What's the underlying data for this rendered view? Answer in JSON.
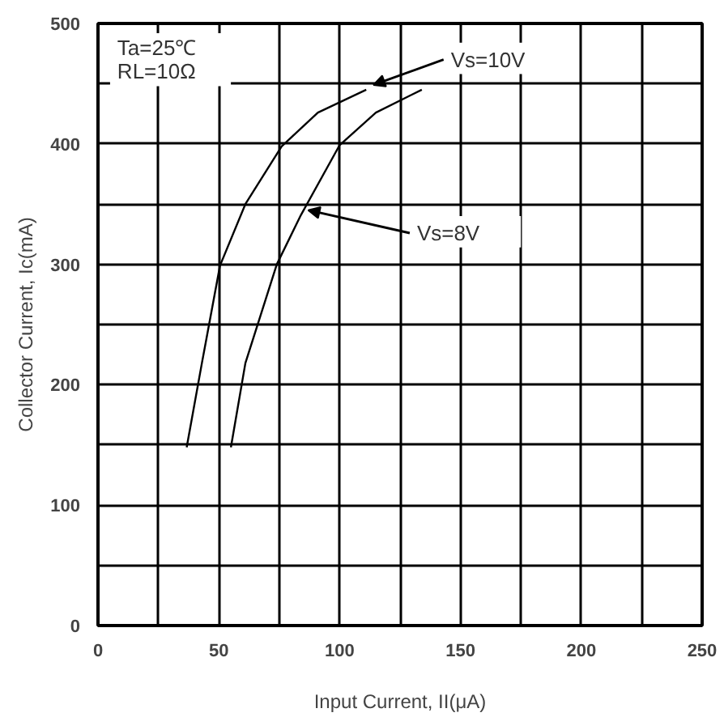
{
  "chart_data": {
    "type": "line",
    "xlabel": "Input Current, II(μA)",
    "ylabel": "Collector Current, Ic(mA)",
    "xlim": [
      0,
      250
    ],
    "ylim": [
      0,
      500
    ],
    "xticks": [
      0,
      {
        "value": 25,
        "label": null
      },
      50,
      {
        "value": 75,
        "label": null
      },
      100,
      {
        "value": 125,
        "label": null
      },
      150,
      {
        "value": 175,
        "label": null
      },
      200,
      {
        "value": 225,
        "label": null
      },
      250
    ],
    "yticks": [
      0,
      {
        "value": 50,
        "label": null
      },
      100,
      {
        "value": 150,
        "label": null
      },
      200,
      {
        "value": 250,
        "label": null
      },
      300,
      {
        "value": 350,
        "label": null
      },
      400,
      {
        "value": 450,
        "label": null
      },
      500
    ],
    "grid": true,
    "marker": "none",
    "line_style": "solid",
    "series": [
      {
        "color": "#000000",
        "x": [
          36.7,
          43,
          50.5,
          61,
          76,
          91,
          111
        ],
        "values": [
          148,
          218,
          299,
          350,
          398,
          426,
          445
        ]
      },
      {
        "color": "#000000",
        "x": [
          55,
          61,
          74,
          84,
          100,
          115,
          134
        ],
        "values": [
          148,
          218,
          300,
          341,
          399,
          426,
          445
        ]
      }
    ],
    "annotations": [
      "Ta=25℃",
      "RL=10Ω",
      {
        "text": "Vs=10V",
        "x": 111,
        "y": 445
      },
      {
        "text": "Vs=8V",
        "x": 84,
        "y": 341
      }
    ]
  }
}
